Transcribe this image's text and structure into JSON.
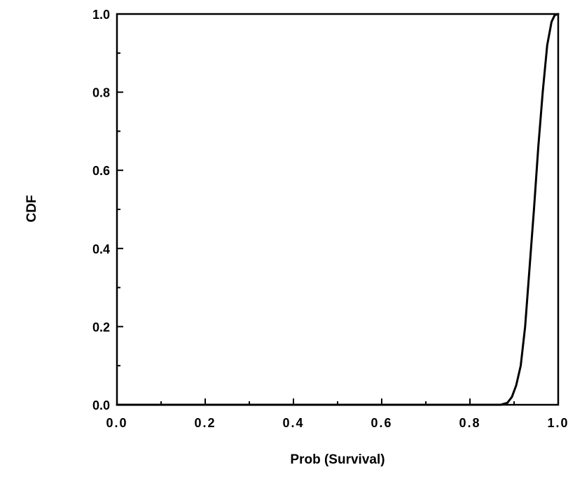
{
  "chart_data": {
    "type": "line",
    "title": "",
    "xlabel": "Prob (Survival)",
    "ylabel": "CDF",
    "xlim": [
      0.0,
      1.0
    ],
    "ylim": [
      0.0,
      1.0
    ],
    "grid": false,
    "x_ticks": [
      {
        "value": 0.0,
        "label": "0.0"
      },
      {
        "value": 0.2,
        "label": "0.2"
      },
      {
        "value": 0.4,
        "label": "0.4"
      },
      {
        "value": 0.6,
        "label": "0.6"
      },
      {
        "value": 0.8,
        "label": "0.8"
      },
      {
        "value": 1.0,
        "label": "1.0"
      }
    ],
    "y_ticks": [
      {
        "value": 0.0,
        "label": "0.0"
      },
      {
        "value": 0.2,
        "label": "0.2"
      },
      {
        "value": 0.4,
        "label": "0.4"
      },
      {
        "value": 0.6,
        "label": "0.6"
      },
      {
        "value": 0.8,
        "label": "0.8"
      },
      {
        "value": 1.0,
        "label": "1.0"
      }
    ],
    "series": [
      {
        "color": "#000000",
        "x": [
          0.0,
          0.87,
          0.885,
          0.895,
          0.905,
          0.915,
          0.925,
          0.935,
          0.945,
          0.955,
          0.965,
          0.975,
          0.985,
          0.992,
          1.0
        ],
        "y": [
          0.0,
          0.0,
          0.005,
          0.02,
          0.05,
          0.1,
          0.2,
          0.35,
          0.5,
          0.66,
          0.8,
          0.92,
          0.98,
          0.997,
          1.0
        ]
      }
    ]
  }
}
